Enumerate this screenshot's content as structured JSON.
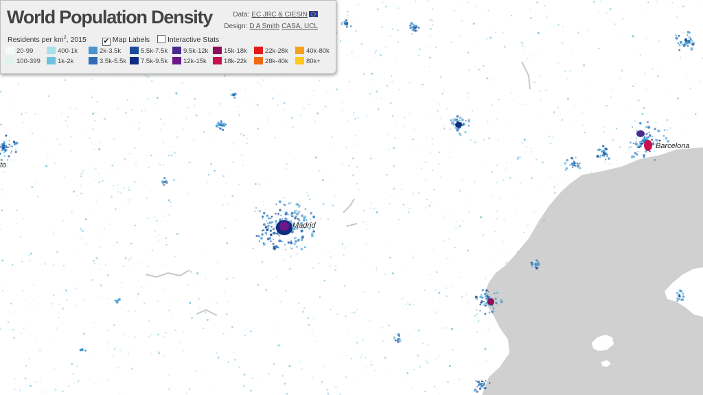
{
  "title": "World Population Density",
  "credits": {
    "data_label": "Data:",
    "data_link": "EC JRC & CIESIN",
    "design_label": "Design:",
    "design_links": [
      "D A Smith",
      "CASA, UCL"
    ]
  },
  "controls": {
    "residents_label": "Residents per km",
    "residents_sup": "2",
    "residents_year": ", 2015",
    "map_labels": {
      "label": "Map Labels",
      "checked": true
    },
    "interactive_stats": {
      "label": "Interactive Stats",
      "checked": false
    }
  },
  "legend": [
    {
      "label": "20-99",
      "color": "#f3fbf8"
    },
    {
      "label": "100-399",
      "color": "#dff3ee"
    },
    {
      "label": "400-1k",
      "color": "#a8e0e8"
    },
    {
      "label": "1k-2k",
      "color": "#6cc2e0"
    },
    {
      "label": "2k-3.5k",
      "color": "#4c93d0"
    },
    {
      "label": "3.5k-5.5k",
      "color": "#2e6db4"
    },
    {
      "label": "5.5k-7.5k",
      "color": "#1b4a99"
    },
    {
      "label": "7.5k-9.5k",
      "color": "#0e2c80"
    },
    {
      "label": "9.5k-12k",
      "color": "#4b2a90"
    },
    {
      "label": "12k-15k",
      "color": "#6a1a88"
    },
    {
      "label": "15k-18k",
      "color": "#8e0f5a"
    },
    {
      "label": "18k-22k",
      "color": "#c8104c"
    },
    {
      "label": "22k-28k",
      "color": "#e41a1a"
    },
    {
      "label": "28k-40k",
      "color": "#f06a12"
    },
    {
      "label": "40k-80k",
      "color": "#f5a01a"
    },
    {
      "label": "80k+",
      "color": "#ffc81a"
    }
  ],
  "cities": [
    {
      "name": "Madrid"
    },
    {
      "name": "Barcelona"
    },
    {
      "name": "to"
    }
  ],
  "colors": {
    "sea": "#d0d0d0",
    "land": "#ffffff",
    "dots": "#3aa6d6"
  }
}
